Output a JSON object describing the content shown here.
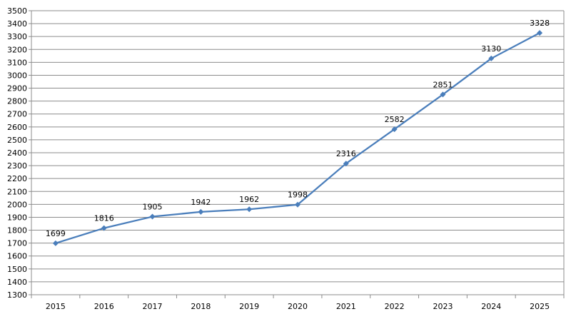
{
  "chart_data": {
    "type": "line",
    "title": "",
    "xlabel": "",
    "ylabel": "",
    "categories": [
      "2015",
      "2016",
      "2017",
      "2018",
      "2019",
      "2020",
      "2021",
      "2022",
      "2023",
      "2024",
      "2025"
    ],
    "series": [
      {
        "values": [
          1699,
          1816,
          1905,
          1942,
          1962,
          1998,
          2316,
          2582,
          2851,
          3130,
          3328
        ],
        "color": "#4a7ebb",
        "marker": "diamond",
        "data_labels": [
          "1699",
          "1816",
          "1905",
          "1942",
          "1962",
          "1998",
          "2316",
          "2582",
          "2851",
          "3130",
          "3328"
        ]
      }
    ],
    "ylim": [
      1300,
      3500
    ],
    "ytick_step": 100,
    "yticks": [
      "1300",
      "1400",
      "1500",
      "1600",
      "1700",
      "1800",
      "1900",
      "2000",
      "2100",
      "2200",
      "2300",
      "2400",
      "2500",
      "2600",
      "2700",
      "2800",
      "2900",
      "3000",
      "3100",
      "3200",
      "3300",
      "3400",
      "3500"
    ],
    "grid": "horizontal",
    "legend": "none"
  }
}
